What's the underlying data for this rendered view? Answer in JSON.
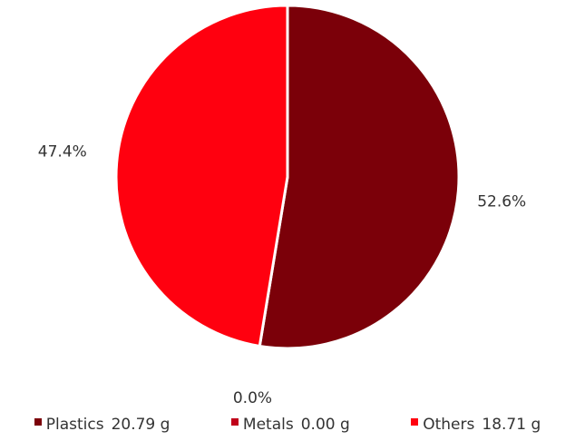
{
  "chart_data": {
    "type": "pie",
    "title": "",
    "slices": [
      {
        "name": "Plastics",
        "percent": 52.6,
        "value": 20.79,
        "value_label": "20.79 g",
        "percent_label": "52.6%",
        "color": "#7b0009"
      },
      {
        "name": "Metals",
        "percent": 0.0,
        "value": 0.0,
        "value_label": "0.00 g",
        "percent_label": "0.0%",
        "color": "#c0001a"
      },
      {
        "name": "Others",
        "percent": 47.4,
        "value": 18.71,
        "value_label": "18.71 g",
        "percent_label": "47.4%",
        "color": "#ff000f"
      }
    ],
    "start_angle": "12 o'clock",
    "direction": "clockwise",
    "legend_position": "bottom"
  }
}
